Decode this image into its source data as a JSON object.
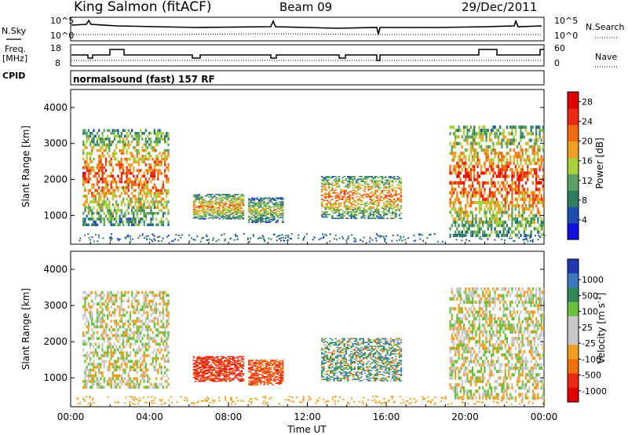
{
  "header": {
    "station": "King Salmon (fitACF)",
    "beam": "Beam 09",
    "date": "29/Dec/2011"
  },
  "sky_panel": {
    "left_label": "N.Sky",
    "right_label": "N.Search",
    "left_ticks": [
      "10^5",
      "10^0"
    ],
    "right_ticks": [
      "10^5",
      "10^0"
    ]
  },
  "freq_panel": {
    "left_label_1": "Freq.",
    "left_label_2": "[MHz]",
    "right_label": "Nave",
    "left_ticks": [
      "18",
      "8"
    ],
    "right_ticks": [
      "60",
      "0"
    ]
  },
  "cpid_panel": {
    "label": "CPID",
    "text": "normalsound (fast) 157 RF"
  },
  "colors": {
    "power_scale": [
      "#1010e0",
      "#1d4fb0",
      "#2e7d60",
      "#5aa060",
      "#a8d03c",
      "#f0a020",
      "#f06a10",
      "#e82a10",
      "#e00000"
    ],
    "velocity_scale": [
      "#2038b0",
      "#3a78c0",
      "#2e8b57",
      "#6cc040",
      "#c8c8c8",
      "#c8c8c8",
      "#f0a020",
      "#f07010",
      "#e82a10",
      "#e00000"
    ]
  },
  "chart_data": [
    {
      "type": "heatmap",
      "name": "power",
      "ylabel": "Slant Range [km]",
      "ylim": [
        200,
        4500
      ],
      "yticks": [
        "1000",
        "2000",
        "3000",
        "4000"
      ],
      "colorbar_label": "Power [dB]",
      "colorbar_ticks": [
        "4",
        "8",
        "12",
        "16",
        "20",
        "24",
        "28"
      ],
      "regions": [
        {
          "t": [
            0.6,
            5.0
          ],
          "r": [
            700,
            3400
          ],
          "v": 18
        },
        {
          "t": [
            6.2,
            8.8
          ],
          "r": [
            900,
            1600
          ],
          "v": 16
        },
        {
          "t": [
            9.0,
            10.8
          ],
          "r": [
            800,
            1500
          ],
          "v": 12
        },
        {
          "t": [
            12.7,
            16.8
          ],
          "r": [
            900,
            2100
          ],
          "v": 17
        },
        {
          "t": [
            19.2,
            24.0
          ],
          "r": [
            400,
            3500
          ],
          "v": 19
        }
      ]
    },
    {
      "type": "heatmap",
      "name": "velocity",
      "ylabel": "Slant Range [km]",
      "xlabel": "Time UT",
      "ylim": [
        200,
        4500
      ],
      "yticks": [
        "1000",
        "2000",
        "3000",
        "4000"
      ],
      "colorbar_label": "Velocity [m s^-1]",
      "colorbar_ticks": [
        "1000",
        "500",
        "100",
        "25",
        "-25",
        "-100",
        "-500",
        "-1000"
      ],
      "xticks": [
        "00:00",
        "04:00",
        "08:00",
        "12:00",
        "16:00",
        "20:00",
        "00:00"
      ],
      "regions": [
        {
          "t": [
            0.6,
            5.0
          ],
          "r": [
            700,
            3400
          ],
          "v": 0
        },
        {
          "t": [
            6.2,
            8.8
          ],
          "r": [
            900,
            1600
          ],
          "v": -700
        },
        {
          "t": [
            9.0,
            10.8
          ],
          "r": [
            800,
            1500
          ],
          "v": -500
        },
        {
          "t": [
            12.7,
            16.8
          ],
          "r": [
            900,
            2100
          ],
          "v": 150
        },
        {
          "t": [
            19.2,
            24.0
          ],
          "r": [
            400,
            3500
          ],
          "v": 0
        }
      ]
    }
  ]
}
